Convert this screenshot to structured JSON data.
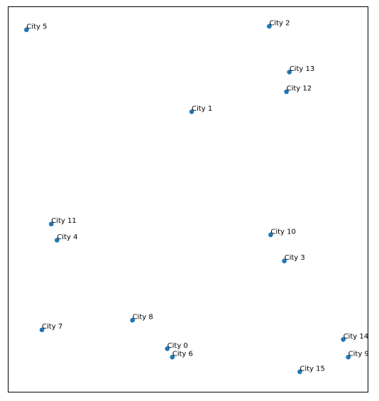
{
  "chart_data": {
    "type": "scatter",
    "title": "",
    "xlabel": "",
    "ylabel": "",
    "axes_ticks_visible": false,
    "grid": false,
    "legend": "none",
    "xlim": [
      0,
      100
    ],
    "ylim": [
      0,
      100
    ],
    "point_color": "#1f77b4",
    "points": [
      {
        "label": "City 0",
        "x": 44.2,
        "y": 11.2
      },
      {
        "label": "City 1",
        "x": 51.0,
        "y": 72.8
      },
      {
        "label": "City 2",
        "x": 72.6,
        "y": 95.0
      },
      {
        "label": "City 3",
        "x": 76.8,
        "y": 34.0
      },
      {
        "label": "City 4",
        "x": 13.5,
        "y": 39.4
      },
      {
        "label": "City 5",
        "x": 5.0,
        "y": 94.1
      },
      {
        "label": "City 6",
        "x": 45.6,
        "y": 9.0
      },
      {
        "label": "City 7",
        "x": 9.3,
        "y": 16.1
      },
      {
        "label": "City 8",
        "x": 34.5,
        "y": 18.6
      },
      {
        "label": "City 9",
        "x": 94.6,
        "y": 9.0
      },
      {
        "label": "City 10",
        "x": 73.0,
        "y": 40.8
      },
      {
        "label": "City 11",
        "x": 11.9,
        "y": 43.6
      },
      {
        "label": "City 12",
        "x": 77.4,
        "y": 78.0
      },
      {
        "label": "City 13",
        "x": 78.2,
        "y": 83.1
      },
      {
        "label": "City 14",
        "x": 93.2,
        "y": 13.6
      },
      {
        "label": "City 15",
        "x": 81.1,
        "y": 5.2
      }
    ]
  }
}
